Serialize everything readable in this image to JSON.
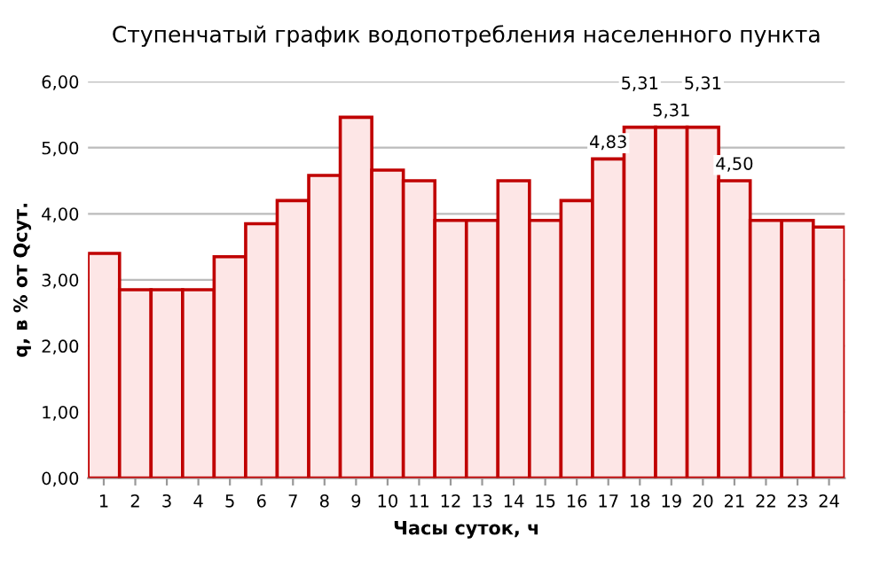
{
  "chart_data": {
    "type": "bar",
    "title": "Ступенчатый график водопотребления населенного пункта",
    "xlabel": "Часы суток, ч",
    "ylabel": "q, в % от Qсут.",
    "categories": [
      "1",
      "2",
      "3",
      "4",
      "5",
      "6",
      "7",
      "8",
      "9",
      "10",
      "11",
      "12",
      "13",
      "14",
      "15",
      "16",
      "17",
      "18",
      "19",
      "20",
      "21",
      "22",
      "23",
      "24"
    ],
    "values": [
      3.4,
      2.85,
      2.85,
      2.85,
      3.35,
      3.85,
      4.2,
      4.58,
      5.46,
      4.66,
      4.5,
      3.9,
      3.9,
      4.5,
      3.9,
      4.2,
      4.83,
      5.31,
      5.31,
      5.31,
      4.5,
      3.9,
      3.9,
      3.8
    ],
    "value_labels": [
      null,
      null,
      null,
      null,
      null,
      null,
      null,
      null,
      null,
      null,
      null,
      null,
      null,
      null,
      null,
      null,
      "4,83",
      "5,31",
      "5,31",
      "5,31",
      "4,50",
      null,
      null,
      null
    ],
    "color": "#c00000",
    "ylim": [
      0,
      6
    ],
    "yticks": [
      {
        "value": 0,
        "label": "0,00"
      },
      {
        "value": 1,
        "label": "1,00"
      },
      {
        "value": 2,
        "label": "2,00"
      },
      {
        "value": 3,
        "label": "3,00"
      },
      {
        "value": 4,
        "label": "4,00"
      },
      {
        "value": 5,
        "label": "5,00"
      },
      {
        "value": 6,
        "label": "6,00"
      }
    ],
    "grid": "y"
  }
}
